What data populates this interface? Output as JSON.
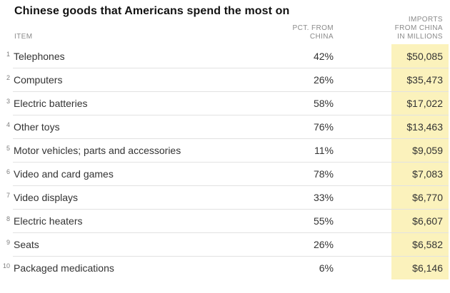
{
  "title": "Chinese goods that Americans spend the most on",
  "header": {
    "item_label": "ITEM",
    "pct_lines": [
      "PCT. FROM",
      "CHINA"
    ],
    "imports_lines": [
      "IMPORTS",
      "FROM CHINA",
      "IN MILLIONS"
    ]
  },
  "rows": [
    {
      "rank": "1",
      "item": "Telephones",
      "pct": "42%",
      "imports": "$50,085"
    },
    {
      "rank": "2",
      "item": "Computers",
      "pct": "26%",
      "imports": "$35,473"
    },
    {
      "rank": "3",
      "item": "Electric batteries",
      "pct": "58%",
      "imports": "$17,022"
    },
    {
      "rank": "4",
      "item": "Other toys",
      "pct": "76%",
      "imports": "$13,463"
    },
    {
      "rank": "5",
      "item": "Motor vehicles; parts and accessories",
      "pct": "11%",
      "imports": "$9,059"
    },
    {
      "rank": "6",
      "item": "Video and card games",
      "pct": "78%",
      "imports": "$7,083"
    },
    {
      "rank": "7",
      "item": "Video displays",
      "pct": "33%",
      "imports": "$6,770"
    },
    {
      "rank": "8",
      "item": "Electric heaters",
      "pct": "55%",
      "imports": "$6,607"
    },
    {
      "rank": "9",
      "item": "Seats",
      "pct": "26%",
      "imports": "$6,582"
    },
    {
      "rank": "10",
      "item": "Packaged medications",
      "pct": "6%",
      "imports": "$6,146"
    }
  ],
  "colors": {
    "highlight": "#fbf2bc",
    "separator": "#e2e2e2",
    "header_text": "#8a8a8a",
    "body_text": "#333333",
    "title_text": "#121212",
    "background": "#ffffff"
  },
  "chart_data": {
    "type": "table",
    "title": "Chinese goods that Americans spend the most on",
    "columns": [
      "ITEM",
      "PCT. FROM CHINA",
      "IMPORTS FROM CHINA IN MILLIONS"
    ],
    "categories": [
      "Telephones",
      "Computers",
      "Electric batteries",
      "Other toys",
      "Motor vehicles; parts and accessories",
      "Video and card games",
      "Video displays",
      "Electric heaters",
      "Seats",
      "Packaged medications"
    ],
    "series": [
      {
        "name": "Pct. from China (%)",
        "values": [
          42,
          26,
          58,
          76,
          11,
          78,
          33,
          55,
          26,
          6
        ]
      },
      {
        "name": "Imports from China in millions ($)",
        "values": [
          50085,
          35473,
          17022,
          13463,
          9059,
          7083,
          6770,
          6607,
          6582,
          6146
        ]
      }
    ],
    "layout_hints": {
      "imports_column_highlighted": true,
      "highlight_color": "#fbf2bc",
      "rows_ranked": true,
      "value_alignment": "right"
    }
  }
}
